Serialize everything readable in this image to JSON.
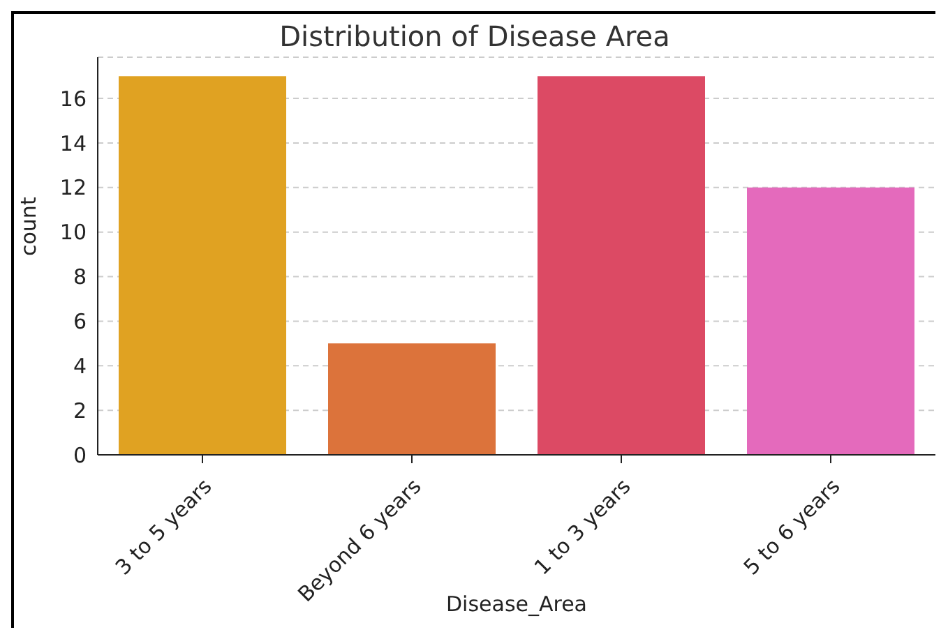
{
  "chart_data": {
    "type": "bar",
    "title": "Distribution of Disease Area",
    "xlabel": "Disease_Area",
    "ylabel": "count",
    "categories": [
      "3 to 5 years",
      "Beyond 6 years",
      "1 to 3 years",
      "5 to 6 years"
    ],
    "values": [
      17,
      5,
      17,
      12
    ],
    "colors": [
      "#e0a222",
      "#dc733b",
      "#dc4a64",
      "#e46abc"
    ],
    "ylim": [
      0,
      17.85
    ],
    "yticks": [
      0,
      2,
      4,
      6,
      8,
      10,
      12,
      14,
      16
    ],
    "grid": "y"
  }
}
